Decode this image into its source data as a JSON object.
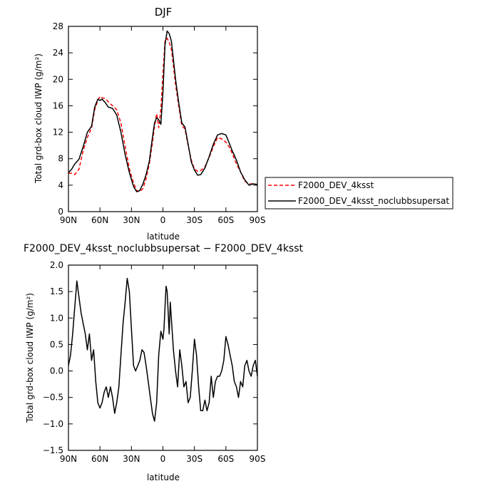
{
  "chart_data": [
    {
      "type": "line",
      "title": "DJF",
      "xlabel": "latitude",
      "ylabel": "Total grd-box cloud IWP (g/m²)",
      "x_ticks": [
        90,
        60,
        30,
        0,
        -30,
        -60,
        -90
      ],
      "x_tick_labels": [
        "90N",
        "60N",
        "30N",
        "0",
        "30S",
        "60S",
        "90S"
      ],
      "xlim": [
        90,
        -90
      ],
      "ylim": [
        0,
        28
      ],
      "y_ticks": [
        0,
        4,
        8,
        12,
        16,
        20,
        24,
        28
      ],
      "y_tick_labels": [
        "0",
        "4",
        "8",
        "12",
        "16",
        "20",
        "24",
        "28"
      ],
      "legend_position": "right",
      "series": [
        {
          "name": "F2000_DEV_4ksst",
          "color": "#ff0000",
          "dash": "dashed",
          "x": [
            90,
            87,
            84,
            80,
            76,
            72,
            68,
            65,
            62,
            60,
            58,
            55,
            52,
            48,
            44,
            40,
            36,
            32,
            28,
            25,
            22,
            19,
            16,
            13,
            10,
            8,
            6,
            4,
            2,
            0,
            -2,
            -4,
            -6,
            -8,
            -10,
            -12,
            -15,
            -18,
            -21,
            -24,
            -27,
            -30,
            -33,
            -36,
            -40,
            -44,
            -48,
            -52,
            -56,
            -60,
            -63,
            -66,
            -70,
            -74,
            -78,
            -82,
            -86,
            -90
          ],
          "values": [
            5.8,
            5.8,
            5.6,
            6.4,
            9.2,
            11.2,
            12.6,
            15.4,
            16.8,
            17.4,
            17.2,
            17.1,
            16.6,
            16.0,
            15.4,
            13.4,
            9.8,
            6.5,
            4.3,
            3.2,
            3.0,
            3.5,
            5.0,
            7.2,
            10.4,
            12.8,
            14.8,
            12.7,
            15.5,
            20.8,
            25.8,
            26.2,
            25.6,
            24.6,
            22.0,
            19.2,
            16.0,
            13.0,
            12.5,
            10.0,
            7.8,
            6.4,
            6.1,
            6.2,
            6.8,
            8.2,
            9.8,
            11.2,
            11.0,
            10.5,
            9.8,
            8.8,
            7.2,
            6.0,
            4.6,
            4.2,
            4.2,
            4.1
          ]
        },
        {
          "name": "F2000_DEV_4ksst_noclubbsupersat",
          "color": "#000000",
          "dash": "solid",
          "x": [
            90,
            87,
            84,
            80,
            76,
            72,
            68,
            65,
            62,
            60,
            58,
            55,
            52,
            48,
            44,
            40,
            36,
            32,
            28,
            25,
            22,
            19,
            16,
            13,
            10,
            8,
            6,
            4,
            2,
            0,
            -2,
            -4,
            -6,
            -8,
            -10,
            -12,
            -15,
            -18,
            -21,
            -24,
            -27,
            -30,
            -33,
            -36,
            -40,
            -44,
            -48,
            -52,
            -56,
            -60,
            -63,
            -66,
            -70,
            -74,
            -78,
            -82,
            -86,
            -90
          ],
          "values": [
            5.9,
            6.4,
            7.2,
            7.9,
            9.8,
            12.0,
            12.9,
            15.8,
            17.0,
            16.8,
            17.0,
            16.5,
            15.8,
            15.6,
            14.6,
            12.0,
            8.6,
            5.9,
            3.8,
            3.0,
            3.2,
            4.2,
            5.6,
            7.6,
            11.2,
            13.4,
            14.2,
            13.9,
            13.2,
            18.0,
            25.2,
            27.3,
            26.9,
            25.8,
            23.0,
            20.0,
            16.5,
            13.4,
            12.8,
            10.2,
            7.5,
            6.3,
            5.5,
            5.6,
            6.6,
            8.3,
            10.2,
            11.6,
            11.8,
            11.6,
            10.4,
            9.2,
            7.8,
            6.0,
            4.8,
            4.0,
            4.2,
            4.1
          ]
        }
      ]
    },
    {
      "type": "line",
      "title": "F2000_DEV_4ksst_noclubbsupersat − F2000_DEV_4ksst",
      "xlabel": "latitude",
      "ylabel": "Total grd-box cloud IWP (g/m²)",
      "x_ticks": [
        90,
        60,
        30,
        0,
        -30,
        -60,
        -90
      ],
      "x_tick_labels": [
        "90N",
        "60N",
        "30N",
        "0",
        "30S",
        "60S",
        "90S"
      ],
      "xlim": [
        90,
        -90
      ],
      "ylim": [
        -1.5,
        2.0
      ],
      "y_ticks": [
        -1.5,
        -1.0,
        -0.5,
        0.0,
        0.5,
        1.0,
        1.5,
        2.0
      ],
      "y_tick_labels": [
        "−1.5",
        "−1.0",
        "−0.5",
        "0.0",
        "0.5",
        "1.0",
        "1.5",
        "2.0"
      ],
      "series": [
        {
          "color": "#000000",
          "dash": "solid",
          "x": [
            90,
            88,
            86,
            84,
            82,
            80,
            78,
            76,
            74,
            72,
            70,
            68,
            66,
            64,
            62,
            60,
            58,
            56,
            54,
            52,
            50,
            48,
            46,
            44,
            42,
            40,
            38,
            36,
            34,
            32,
            30,
            28,
            26,
            24,
            22,
            20,
            18,
            16,
            14,
            12,
            10,
            8,
            6,
            4,
            2,
            0,
            -1,
            -2,
            -3,
            -4,
            -5,
            -6,
            -7,
            -8,
            -10,
            -12,
            -14,
            -16,
            -18,
            -20,
            -22,
            -24,
            -26,
            -28,
            -30,
            -32,
            -34,
            -36,
            -38,
            -40,
            -42,
            -44,
            -46,
            -48,
            -50,
            -52,
            -54,
            -56,
            -58,
            -60,
            -62,
            -64,
            -66,
            -68,
            -70,
            -72,
            -74,
            -76,
            -78,
            -80,
            -82,
            -84,
            -86,
            -88,
            -90
          ],
          "values": [
            0.1,
            0.3,
            0.7,
            1.2,
            1.7,
            1.4,
            1.1,
            0.9,
            0.7,
            0.4,
            0.7,
            0.2,
            0.4,
            -0.2,
            -0.6,
            -0.7,
            -0.6,
            -0.4,
            -0.3,
            -0.5,
            -0.3,
            -0.5,
            -0.8,
            -0.6,
            -0.3,
            0.3,
            0.9,
            1.3,
            1.75,
            1.5,
            0.8,
            0.1,
            0.0,
            0.1,
            0.2,
            0.4,
            0.35,
            0.1,
            -0.2,
            -0.5,
            -0.8,
            -0.95,
            -0.6,
            0.3,
            0.75,
            0.6,
            0.8,
            1.2,
            1.6,
            1.5,
            1.1,
            0.7,
            1.3,
            1.0,
            0.4,
            0.0,
            -0.3,
            0.4,
            0.1,
            -0.3,
            -0.2,
            -0.6,
            -0.5,
            0.0,
            0.6,
            0.3,
            -0.3,
            -0.75,
            -0.75,
            -0.55,
            -0.75,
            -0.6,
            -0.1,
            -0.5,
            -0.2,
            -0.1,
            -0.1,
            0.0,
            0.2,
            0.65,
            0.5,
            0.3,
            0.1,
            -0.2,
            -0.3,
            -0.5,
            -0.2,
            -0.3,
            0.1,
            0.2,
            0.0,
            -0.1,
            0.1,
            0.2,
            -0.1
          ]
        }
      ]
    }
  ]
}
